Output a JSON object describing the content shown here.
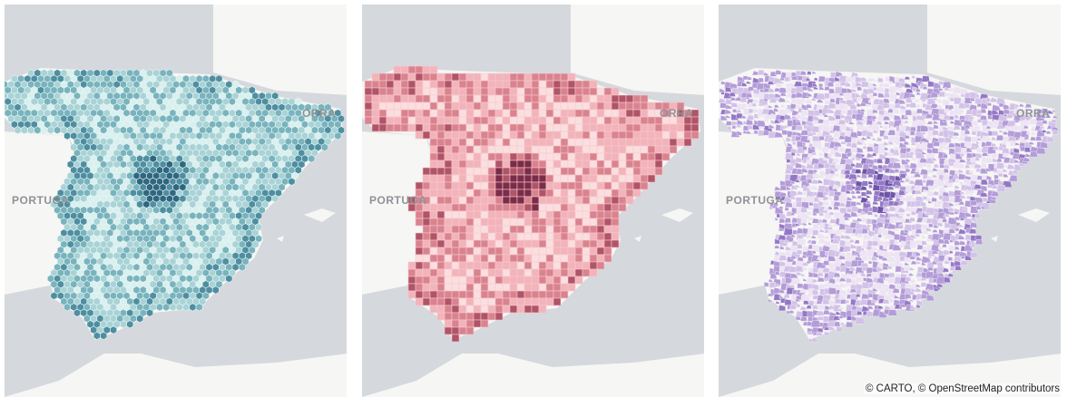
{
  "map": {
    "sea_color": "#d5d8dc",
    "land_color": "#f6f6f4",
    "label_portugal": "PORTUGA",
    "label_andorra": "ORRA",
    "attribution": "© CARTO, © OpenStreetMap contributors"
  },
  "panels": [
    {
      "name": "hexagon-grid",
      "cell": "hexagon",
      "palette": [
        "#d9f0ef",
        "#a9d3d6",
        "#79b3bd",
        "#4f8ea0",
        "#2f6680"
      ]
    },
    {
      "name": "square-grid",
      "cell": "square",
      "palette": [
        "#fbdfe0",
        "#f2b3ba",
        "#d9838f",
        "#b05468",
        "#7a2c48"
      ]
    },
    {
      "name": "municipality-boundaries",
      "cell": "polygon",
      "palette": [
        "#ece4f3",
        "#d2c2e8",
        "#b39cd8",
        "#9478c6",
        "#6e55a8"
      ]
    }
  ]
}
